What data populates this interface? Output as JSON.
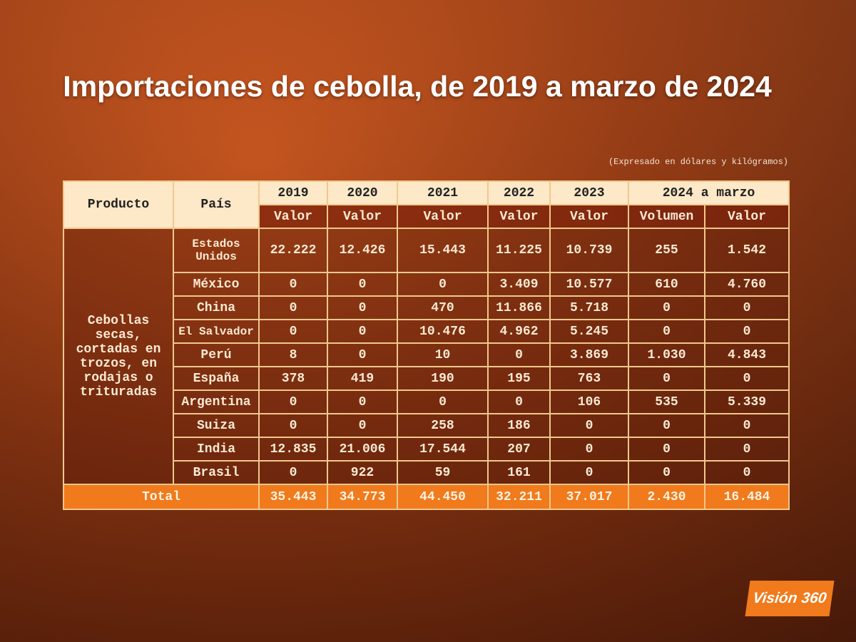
{
  "title": "Importaciones de cebolla, de 2019 a marzo de 2024",
  "note": "(Expresado en dólares y kilógramos)",
  "table": {
    "header": {
      "product": "Producto",
      "country": "País",
      "years": [
        "2019",
        "2020",
        "2021",
        "2022",
        "2023",
        "2024 a marzo"
      ],
      "measures": [
        "Valor",
        "Valor",
        "Valor",
        "Valor",
        "Valor",
        "Volumen",
        "Valor"
      ]
    },
    "product": "Cebollas secas, cortadas en trozos, en rodajas o trituradas",
    "rows": [
      [
        "Estados Unidos",
        "22.222",
        "12.426",
        "15.443",
        "11.225",
        "10.739",
        "255",
        "1.542"
      ],
      [
        "México",
        "0",
        "0",
        "0",
        "3.409",
        "10.577",
        "610",
        "4.760"
      ],
      [
        "China",
        "0",
        "0",
        "470",
        "11.866",
        "5.718",
        "0",
        "0"
      ],
      [
        "El Salvador",
        "0",
        "0",
        "10.476",
        "4.962",
        "5.245",
        "0",
        "0"
      ],
      [
        "Perú",
        "8",
        "0",
        "10",
        "0",
        "3.869",
        "1.030",
        "4.843"
      ],
      [
        "España",
        "378",
        "419",
        "190",
        "195",
        "763",
        "0",
        "0"
      ],
      [
        "Argentina",
        "0",
        "0",
        "0",
        "0",
        "106",
        "535",
        "5.339"
      ],
      [
        "Suiza",
        "0",
        "0",
        "258",
        "186",
        "0",
        "0",
        "0"
      ],
      [
        "India",
        "12.835",
        "21.006",
        "17.544",
        "207",
        "0",
        "0",
        "0"
      ],
      [
        "Brasil",
        "0",
        "922",
        "59",
        "161",
        "0",
        "0",
        "0"
      ]
    ],
    "total": {
      "label": "Total",
      "values": [
        "35.443",
        "34.773",
        "44.450",
        "32.211",
        "37.017",
        "2.430",
        "16.484"
      ]
    }
  },
  "logo": "Visión 360"
}
